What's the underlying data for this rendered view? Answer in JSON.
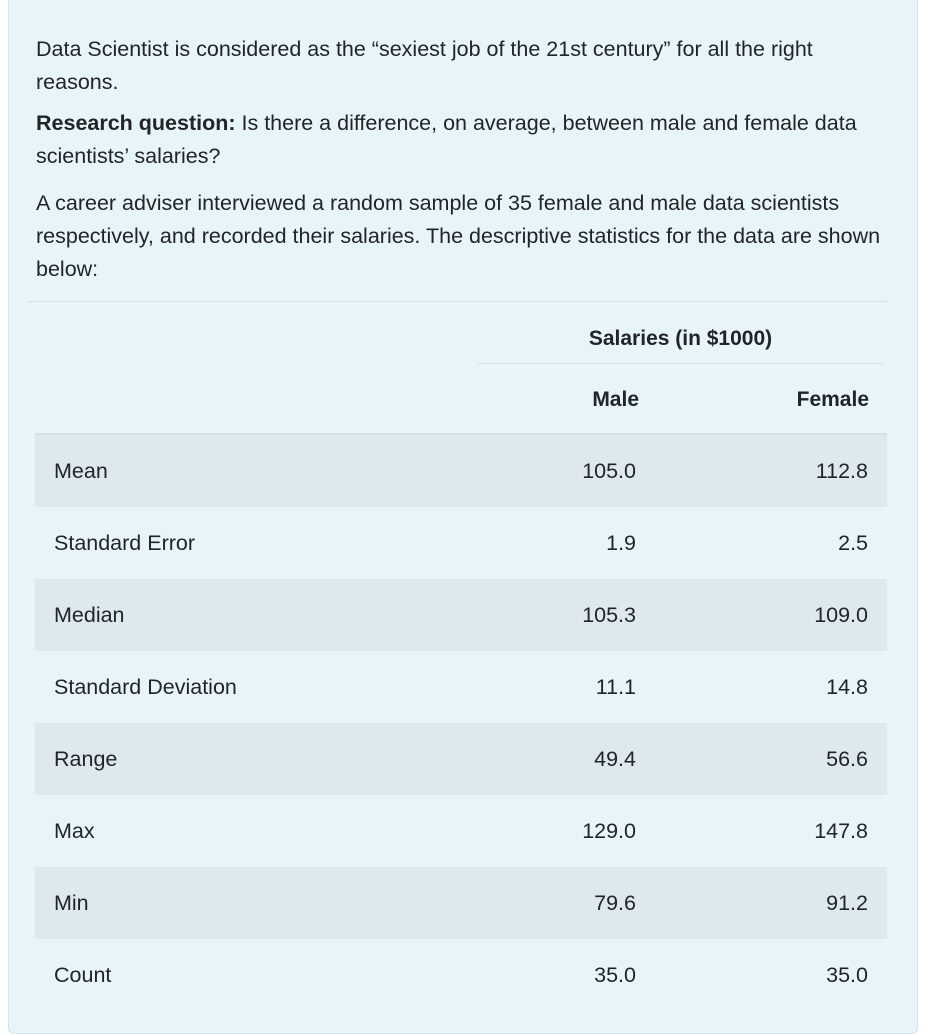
{
  "intro": {
    "p1": "Data Scientist is considered as the “sexiest job of the 21st century” for all the right reasons.",
    "research_label": "Research question:",
    "research_text": " Is there a difference, on average, between male and female data scientists’ salaries?",
    "p3": "A career adviser interviewed a random sample of 35 female and male data scientists respectively, and recorded their salaries. The descriptive statistics for the data are shown below:"
  },
  "table": {
    "group_header": "Salaries (in $1000)",
    "columns": [
      "Male",
      "Female"
    ],
    "rows": [
      {
        "label": "Mean",
        "male": "105.0",
        "female": "112.8"
      },
      {
        "label": "Standard Error",
        "male": "1.9",
        "female": "2.5"
      },
      {
        "label": "Median",
        "male": "105.3",
        "female": "109.0"
      },
      {
        "label": "Standard Deviation",
        "male": "11.1",
        "female": "14.8"
      },
      {
        "label": "Range",
        "male": "49.4",
        "female": "56.6"
      },
      {
        "label": "Max",
        "male": "129.0",
        "female": "147.8"
      },
      {
        "label": "Min",
        "male": "79.6",
        "female": "91.2"
      },
      {
        "label": "Count",
        "male": "35.0",
        "female": "35.0"
      }
    ]
  },
  "colors": {
    "card_background": "#e8f5f8",
    "shaded_row": "#dde9ec",
    "text": "#212529"
  }
}
